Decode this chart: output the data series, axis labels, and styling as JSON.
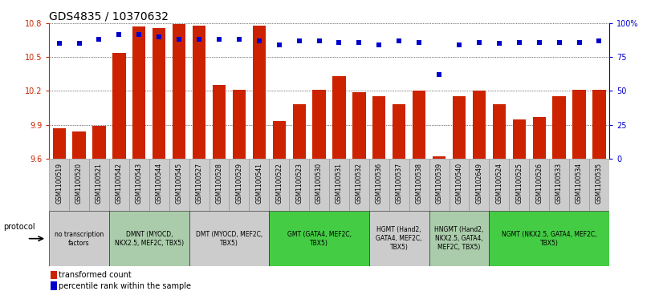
{
  "title": "GDS4835 / 10370632",
  "samples": [
    "GSM1100519",
    "GSM1100520",
    "GSM1100521",
    "GSM1100542",
    "GSM1100543",
    "GSM1100544",
    "GSM1100545",
    "GSM1100527",
    "GSM1100528",
    "GSM1100529",
    "GSM1100541",
    "GSM1100522",
    "GSM1100523",
    "GSM1100530",
    "GSM1100531",
    "GSM1100532",
    "GSM1100536",
    "GSM1100537",
    "GSM1100538",
    "GSM1100539",
    "GSM1100540",
    "GSM1102649",
    "GSM1100524",
    "GSM1100525",
    "GSM1100526",
    "GSM1100533",
    "GSM1100534",
    "GSM1100535"
  ],
  "bar_values": [
    9.87,
    9.84,
    9.89,
    10.54,
    10.77,
    10.76,
    10.79,
    10.78,
    10.25,
    10.21,
    10.78,
    9.93,
    10.08,
    10.21,
    10.33,
    10.19,
    10.15,
    10.08,
    10.2,
    9.62,
    10.15,
    10.2,
    10.08,
    9.95,
    9.97,
    10.15,
    10.21,
    10.21
  ],
  "percentile_values": [
    85,
    85,
    88,
    92,
    92,
    90,
    88,
    88,
    88,
    88,
    87,
    84,
    87,
    87,
    86,
    86,
    84,
    87,
    86,
    62,
    84,
    86,
    85,
    86,
    86,
    86,
    86,
    87
  ],
  "bar_color": "#cc2200",
  "dot_color": "#0000cc",
  "ymin": 9.6,
  "ymax": 10.8,
  "yticks": [
    9.6,
    9.9,
    10.2,
    10.5,
    10.8
  ],
  "right_yticks": [
    0,
    25,
    50,
    75,
    100
  ],
  "right_ytick_labels": [
    "0",
    "25",
    "50",
    "75",
    "100%"
  ],
  "protocol_groups": [
    {
      "label": "no transcription\nfactors",
      "start": 0,
      "end": 3,
      "color": "#cccccc"
    },
    {
      "label": "DMNT (MYOCD,\nNKX2.5, MEF2C, TBX5)",
      "start": 3,
      "end": 7,
      "color": "#aaccaa"
    },
    {
      "label": "DMT (MYOCD, MEF2C,\nTBX5)",
      "start": 7,
      "end": 11,
      "color": "#cccccc"
    },
    {
      "label": "GMT (GATA4, MEF2C,\nTBX5)",
      "start": 11,
      "end": 16,
      "color": "#44cc44"
    },
    {
      "label": "HGMT (Hand2,\nGATA4, MEF2C,\nTBX5)",
      "start": 16,
      "end": 19,
      "color": "#cccccc"
    },
    {
      "label": "HNGMT (Hand2,\nNKX2.5, GATA4,\nMEF2C, TBX5)",
      "start": 19,
      "end": 22,
      "color": "#aaccaa"
    },
    {
      "label": "NGMT (NKX2.5, GATA4, MEF2C,\nTBX5)",
      "start": 22,
      "end": 28,
      "color": "#44cc44"
    }
  ],
  "protocol_label": "protocol",
  "legend_bar_label": "transformed count",
  "legend_dot_label": "percentile rank within the sample",
  "title_fontsize": 10,
  "tick_fontsize": 7,
  "sample_fontsize": 5.5,
  "proto_fontsize": 5.5,
  "legend_fontsize": 7
}
